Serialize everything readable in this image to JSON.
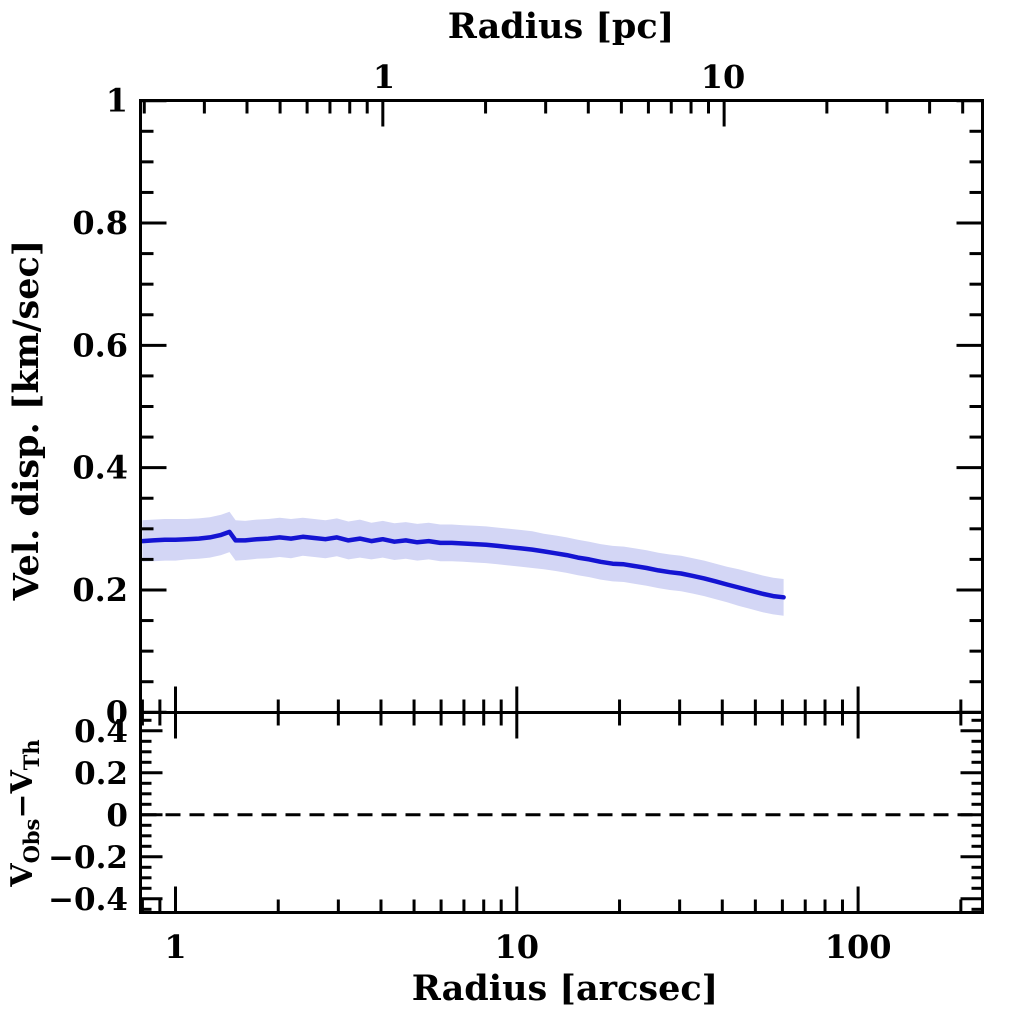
{
  "chart_data": {
    "type": "line",
    "description": "Velocity dispersion radial profile with uncertainty band (top panel) and observed-minus-theoretical residual panel (bottom) on a shared logarithmic radius axis",
    "x_axis": {
      "scale": "log",
      "label": "Radius [arcsec]",
      "range": [
        0.78,
        232
      ],
      "ticks": [
        1,
        10,
        100
      ],
      "tick_labels": [
        "1",
        "10",
        "100"
      ]
    },
    "top_axis": {
      "scale": "log",
      "label": "Radius [pc]",
      "arcsec_per_pc": 4.05,
      "ticks_pc": [
        1,
        10
      ],
      "tick_labels": [
        "1",
        "10"
      ]
    },
    "panels": [
      {
        "name": "velocity-dispersion",
        "ylabel": "Vel. disp. [km/sec]",
        "ylim": [
          0,
          1
        ],
        "yticks": [
          0,
          0.2,
          0.4,
          0.6,
          0.8,
          1
        ],
        "ytick_labels": [
          "0",
          "0.2",
          "0.4",
          "0.6",
          "0.8",
          "1"
        ],
        "yminor_step": 0.05,
        "series": [
          {
            "name": "observed-velocity-dispersion",
            "color": "#1414d2",
            "band_color": "#d3d6f5",
            "x": [
              0.8,
              0.86,
              0.93,
              1.0,
              1.08,
              1.17,
              1.26,
              1.36,
              1.44,
              1.5,
              1.6,
              1.73,
              1.87,
              2.02,
              2.18,
              2.36,
              2.55,
              2.75,
              2.97,
              3.21,
              3.47,
              3.75,
              4.05,
              4.38,
              4.73,
              5.11,
              5.52,
              5.97,
              6.45,
              6.97,
              7.53,
              8.13,
              8.79,
              9.5,
              10.3,
              11.1,
              12.0,
              13.0,
              14.0,
              15.1,
              16.3,
              17.6,
              19.1,
              20.6,
              22.2,
              24.0,
              26.0,
              28.1,
              30.3,
              32.8,
              35.4,
              38.3,
              41.3,
              44.7,
              48.3,
              52.2,
              56.4,
              60.5
            ],
            "y": [
              0.28,
              0.281,
              0.282,
              0.282,
              0.283,
              0.284,
              0.286,
              0.29,
              0.295,
              0.281,
              0.281,
              0.283,
              0.284,
              0.286,
              0.284,
              0.287,
              0.285,
              0.283,
              0.286,
              0.281,
              0.284,
              0.28,
              0.283,
              0.279,
              0.281,
              0.278,
              0.28,
              0.277,
              0.277,
              0.276,
              0.275,
              0.274,
              0.272,
              0.27,
              0.268,
              0.266,
              0.263,
              0.26,
              0.257,
              0.253,
              0.25,
              0.246,
              0.243,
              0.242,
              0.239,
              0.236,
              0.232,
              0.229,
              0.227,
              0.223,
              0.219,
              0.214,
              0.209,
              0.204,
              0.199,
              0.194,
              0.19,
              0.188
            ],
            "y_err": [
              0.034,
              0.034,
              0.034,
              0.034,
              0.033,
              0.033,
              0.033,
              0.033,
              0.033,
              0.033,
              0.032,
              0.032,
              0.032,
              0.032,
              0.032,
              0.031,
              0.031,
              0.031,
              0.031,
              0.031,
              0.031,
              0.03,
              0.03,
              0.03,
              0.03,
              0.03,
              0.03,
              0.03,
              0.03,
              0.03,
              0.03,
              0.03,
              0.03,
              0.03,
              0.03,
              0.03,
              0.029,
              0.029,
              0.029,
              0.029,
              0.029,
              0.029,
              0.029,
              0.029,
              0.029,
              0.029,
              0.029,
              0.029,
              0.029,
              0.029,
              0.029,
              0.029,
              0.029,
              0.03,
              0.03,
              0.03,
              0.03,
              0.03
            ]
          }
        ]
      },
      {
        "name": "residuals",
        "ylabel_parts": [
          "V",
          "Obs",
          "−V",
          "Th"
        ],
        "ylim": [
          -0.47,
          0.49
        ],
        "yticks": [
          -0.4,
          -0.2,
          0,
          0.2,
          0.4
        ],
        "ytick_labels": [
          "−0.4",
          "−0.2",
          "0",
          "0.2",
          "0.4"
        ],
        "yminor_step": 0.05,
        "zero_line": {
          "style": "dashed",
          "value": 0,
          "color": "#000000"
        }
      }
    ],
    "colors": {
      "frame": "#000000",
      "background": "#ffffff"
    }
  }
}
